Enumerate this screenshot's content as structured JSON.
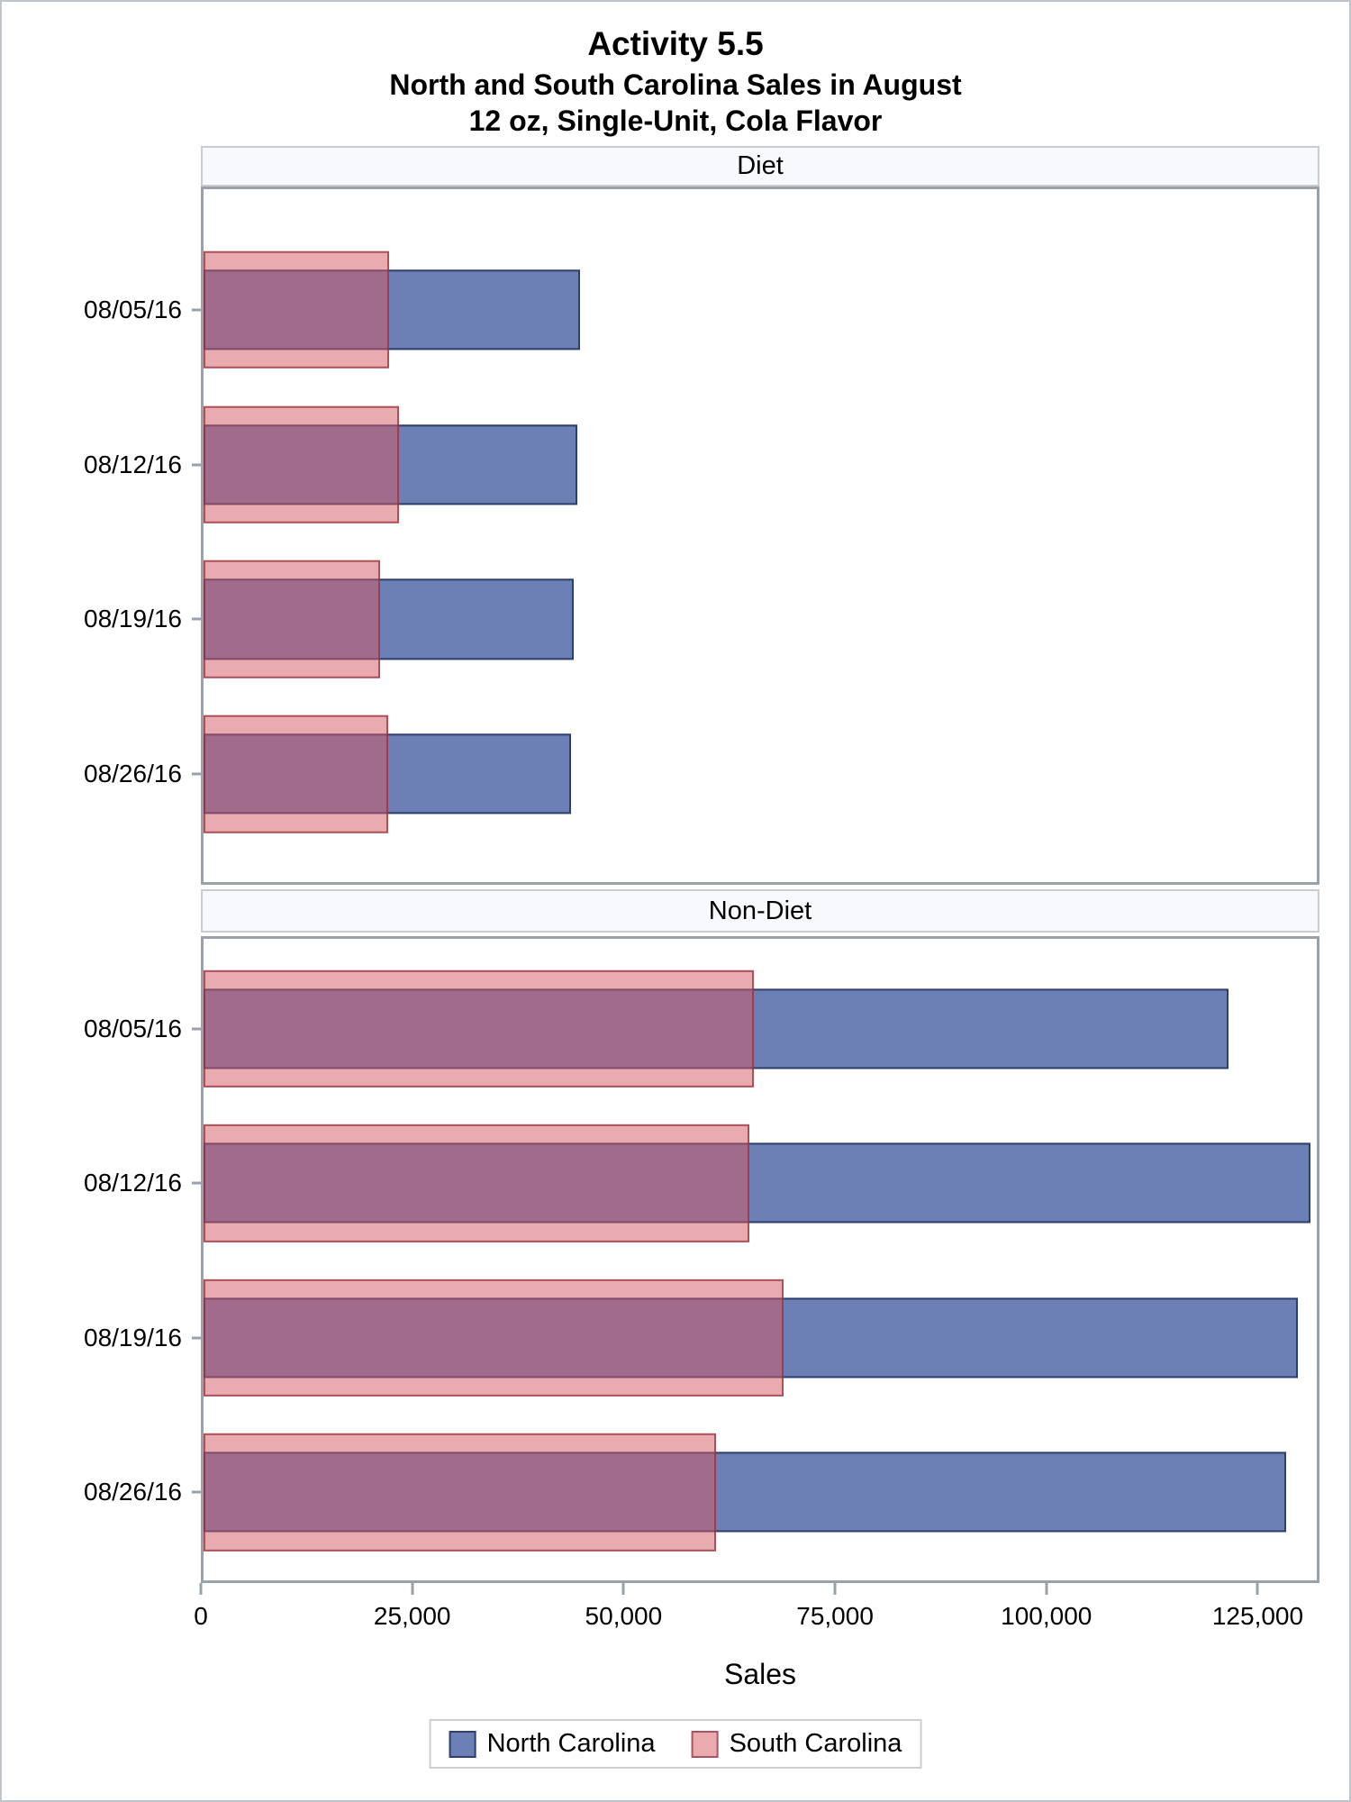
{
  "title": {
    "line1": "Activity 5.5",
    "line2": "North and South Carolina Sales in August",
    "line3": "12 oz, Single-Unit, Cola Flavor"
  },
  "chart_data": {
    "type": "bar",
    "orientation": "horizontal",
    "title": "Activity 5.5 — North and South Carolina Sales in August — 12 oz, Single-Unit, Cola Flavor",
    "xlabel": "Sales",
    "ylabel": "",
    "xlim": [
      0,
      132300
    ],
    "grid": false,
    "legend_position": "bottom",
    "categories": [
      "08/05/16",
      "08/12/16",
      "08/19/16",
      "08/26/16"
    ],
    "panels": [
      {
        "label": "Diet",
        "series": [
          {
            "name": "North Carolina",
            "values": [
              44700,
              44400,
              44000,
              43700
            ]
          },
          {
            "name": "South Carolina",
            "values": [
              22100,
              23200,
              21000,
              21900
            ]
          }
        ]
      },
      {
        "label": "Non-Diet",
        "series": [
          {
            "name": "North Carolina",
            "values": [
              121800,
              131600,
              130100,
              128700
            ]
          },
          {
            "name": "South Carolina",
            "values": [
              65400,
              64900,
              68900,
              60900
            ]
          }
        ]
      }
    ],
    "xticks": [
      {
        "value": 0,
        "label": "0"
      },
      {
        "value": 25000,
        "label": "25,000"
      },
      {
        "value": 50000,
        "label": "50,000"
      },
      {
        "value": 75000,
        "label": "75,000"
      },
      {
        "value": 100000,
        "label": "100,000"
      },
      {
        "value": 125000,
        "label": "125,000"
      }
    ],
    "legend": [
      {
        "name": "North Carolina",
        "fill": "#6d80b5",
        "border": "#2e3f6e"
      },
      {
        "name": "South Carolina",
        "fill": "#e9abb0",
        "border": "#a8555e"
      }
    ]
  },
  "colors": {
    "frame": "#99a1aa",
    "panel_header_bg": "#f8f9fd",
    "nc_fill": "#6d80b5",
    "nc_border": "#2e3f6e",
    "sc_fill_overlay": "rgba(213,88,98,0.5)",
    "sc_fill_flat": "#e9abb0",
    "sc_border": "#a8555e",
    "overlap": "#a06b8b"
  }
}
